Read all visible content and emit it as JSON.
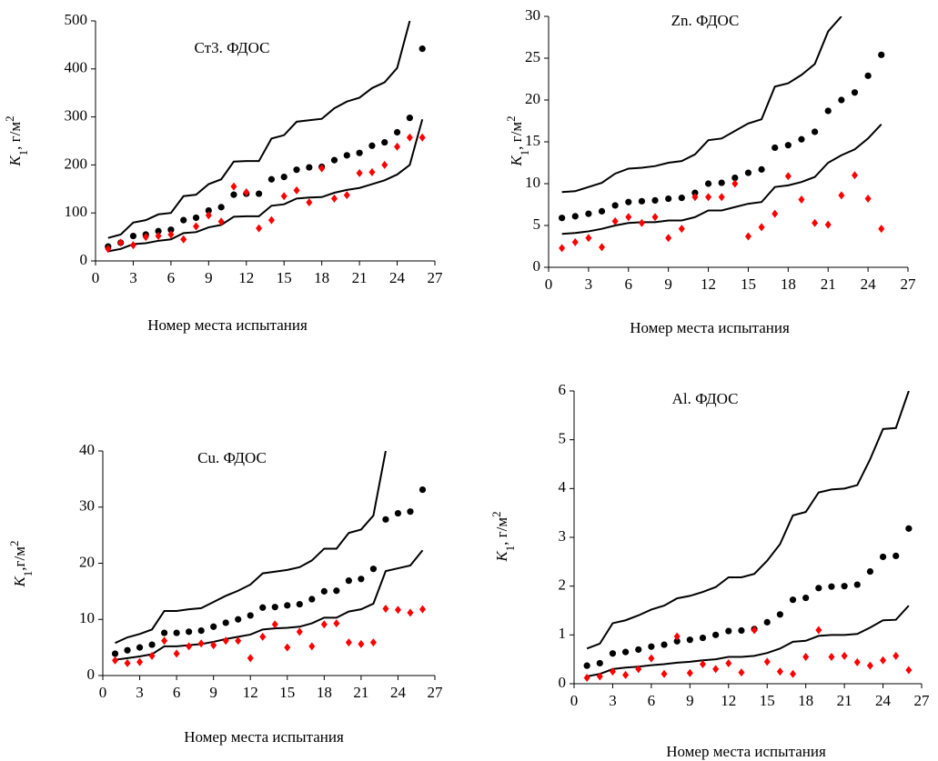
{
  "chart_data": [
    {
      "type": "scatter",
      "title": "Ст3. ФДОС",
      "xlabel": "Номер места испытания",
      "ylabel": {
        "symbol": "K",
        "sub": "1",
        "text": ", г/м",
        "sup": "2"
      },
      "xlim": [
        0,
        27
      ],
      "xticks": [
        0,
        3,
        6,
        9,
        12,
        15,
        18,
        21,
        24,
        27
      ],
      "ylim": [
        0,
        500
      ],
      "yticks": [
        0,
        100,
        200,
        300,
        400,
        500
      ],
      "series": [
        {
          "style": "line",
          "color": "#000000",
          "x": [
            1,
            2,
            3,
            4,
            5,
            6,
            7,
            8,
            9,
            10,
            11,
            12,
            13,
            14,
            15,
            16,
            17,
            18,
            19,
            20,
            21,
            22,
            23,
            24,
            25
          ],
          "values": [
            48,
            55,
            80,
            85,
            97,
            100,
            135,
            138,
            160,
            170,
            207,
            208,
            208,
            255,
            262,
            290,
            293,
            296,
            318,
            332,
            340,
            360,
            372,
            402,
            500
          ]
        },
        {
          "style": "line",
          "color": "#000000",
          "x": [
            1,
            2,
            3,
            4,
            5,
            6,
            7,
            8,
            9,
            10,
            11,
            12,
            13,
            14,
            15,
            16,
            17,
            18,
            19,
            20,
            21,
            22,
            23,
            24,
            25,
            26
          ],
          "values": [
            20,
            25,
            35,
            37,
            42,
            45,
            58,
            60,
            70,
            75,
            92,
            93,
            93,
            115,
            118,
            130,
            132,
            133,
            142,
            148,
            152,
            160,
            168,
            180,
            200,
            295
          ]
        },
        {
          "style": "circle",
          "color": "#000000",
          "x": [
            1,
            2,
            3,
            4,
            5,
            6,
            7,
            8,
            9,
            10,
            11,
            12,
            13,
            14,
            15,
            16,
            17,
            18,
            19,
            20,
            21,
            22,
            23,
            24,
            25,
            26
          ],
          "values": [
            30,
            38,
            52,
            55,
            62,
            65,
            85,
            90,
            105,
            112,
            138,
            140,
            140,
            170,
            175,
            190,
            195,
            196,
            210,
            220,
            225,
            240,
            247,
            268,
            298,
            442
          ]
        },
        {
          "style": "diamond",
          "color": "#ff0000",
          "x": [
            1,
            2,
            3,
            4,
            5,
            6,
            7,
            8,
            9,
            10,
            11,
            12,
            13,
            14,
            15,
            16,
            17,
            18,
            19,
            20,
            21,
            22,
            23,
            24,
            25,
            26
          ],
          "values": [
            25,
            38,
            33,
            50,
            52,
            55,
            45,
            72,
            95,
            82,
            155,
            143,
            68,
            85,
            135,
            147,
            122,
            193,
            130,
            137,
            183,
            185,
            200,
            238,
            257,
            257
          ]
        }
      ]
    },
    {
      "type": "scatter",
      "title": "Zn. ФДОС",
      "xlabel": "Номер места испытания",
      "ylabel": {
        "symbol": "K",
        "sub": "1",
        "text": ", г/м",
        "sup": "2"
      },
      "xlim": [
        0,
        27
      ],
      "xticks": [
        0,
        3,
        6,
        9,
        12,
        15,
        18,
        21,
        24,
        27
      ],
      "ylim": [
        0,
        30
      ],
      "yticks": [
        0,
        5,
        10,
        15,
        20,
        25,
        30
      ],
      "series": [
        {
          "style": "line",
          "color": "#000000",
          "x": [
            1,
            2,
            3,
            4,
            5,
            6,
            7,
            8,
            9,
            10,
            11,
            12,
            13,
            14,
            15,
            16,
            17,
            18,
            19,
            20,
            21,
            22
          ],
          "values": [
            9,
            9.1,
            9.6,
            10.1,
            11.2,
            11.8,
            11.9,
            12.1,
            12.5,
            12.7,
            13.5,
            15.2,
            15.4,
            16.3,
            17.2,
            17.7,
            21.6,
            22,
            23,
            24.3,
            28.2,
            30
          ]
        },
        {
          "style": "line",
          "color": "#000000",
          "x": [
            1,
            2,
            3,
            4,
            5,
            6,
            7,
            8,
            9,
            10,
            11,
            12,
            13,
            14,
            15,
            16,
            17,
            18,
            19,
            20,
            21,
            22,
            23,
            24,
            25
          ],
          "values": [
            4,
            4.1,
            4.3,
            4.6,
            5,
            5.3,
            5.4,
            5.4,
            5.6,
            5.6,
            6,
            6.8,
            6.8,
            7.2,
            7.6,
            7.8,
            9.6,
            9.8,
            10.2,
            10.8,
            12.5,
            13.4,
            14.1,
            15.4,
            17.1
          ]
        },
        {
          "style": "circle",
          "color": "#000000",
          "x": [
            1,
            2,
            3,
            4,
            5,
            6,
            7,
            8,
            9,
            10,
            11,
            12,
            13,
            14,
            15,
            16,
            17,
            18,
            19,
            20,
            21,
            22,
            23,
            24,
            25
          ],
          "values": [
            5.9,
            6.1,
            6.4,
            6.7,
            7.4,
            7.8,
            7.9,
            8,
            8.2,
            8.3,
            8.9,
            10,
            10.1,
            10.7,
            11.3,
            11.7,
            14.3,
            14.6,
            15.3,
            16.2,
            18.7,
            20,
            20.9,
            22.9,
            25.4
          ]
        },
        {
          "style": "diamond",
          "color": "#ff0000",
          "x": [
            1,
            2,
            3,
            4,
            5,
            6,
            7,
            8,
            9,
            10,
            11,
            12,
            13,
            14,
            15,
            16,
            17,
            18,
            19,
            20,
            21,
            22,
            23,
            24,
            25
          ],
          "values": [
            2.3,
            3,
            3.5,
            2.4,
            5.5,
            6,
            5.3,
            6,
            3.5,
            4.6,
            8.4,
            8.4,
            8.4,
            10,
            3.7,
            4.8,
            6.4,
            10.9,
            8.1,
            5.3,
            5.1,
            8.6,
            11,
            8.2,
            4.6
          ]
        }
      ]
    },
    {
      "type": "scatter",
      "title": "Cu. ФДОС",
      "xlabel": "Номер места испытания",
      "ylabel": {
        "symbol": "K",
        "sub": "1",
        "text": ",г/м",
        "sup": "2"
      },
      "xlim": [
        0,
        27
      ],
      "xticks": [
        0,
        3,
        6,
        9,
        12,
        15,
        18,
        21,
        24,
        27
      ],
      "ylim": [
        0,
        40
      ],
      "yticks": [
        0,
        10,
        20,
        30,
        40
      ],
      "series": [
        {
          "style": "line",
          "color": "#000000",
          "x": [
            1,
            2,
            3,
            4,
            5,
            6,
            7,
            8,
            9,
            10,
            11,
            12,
            13,
            14,
            15,
            16,
            17,
            18,
            19,
            20,
            21,
            22,
            23
          ],
          "values": [
            5.8,
            6.8,
            7.4,
            8.2,
            11.5,
            11.5,
            11.8,
            12,
            13.1,
            14.2,
            15.1,
            16.2,
            18.2,
            18.5,
            18.8,
            19.3,
            20.5,
            22.6,
            22.6,
            25.4,
            26,
            28.5,
            40
          ]
        },
        {
          "style": "line",
          "color": "#000000",
          "x": [
            1,
            2,
            3,
            4,
            5,
            6,
            7,
            8,
            9,
            10,
            11,
            12,
            13,
            14,
            15,
            16,
            17,
            18,
            19,
            20,
            21,
            22,
            23,
            24,
            25,
            26
          ],
          "values": [
            2.8,
            3.1,
            3.4,
            3.8,
            5.2,
            5.2,
            5.4,
            5.6,
            6,
            6.5,
            6.9,
            7.3,
            8.2,
            8.4,
            8.5,
            8.7,
            9.3,
            10.3,
            10.3,
            11.4,
            11.8,
            12.8,
            18.6,
            19.1,
            19.6,
            22.3
          ]
        },
        {
          "style": "circle",
          "color": "#000000",
          "x": [
            1,
            2,
            3,
            4,
            5,
            6,
            7,
            8,
            9,
            10,
            11,
            12,
            13,
            14,
            15,
            16,
            17,
            18,
            19,
            20,
            21,
            22,
            23,
            24,
            25,
            26
          ],
          "values": [
            3.9,
            4.5,
            5,
            5.5,
            7.6,
            7.6,
            7.8,
            8,
            8.7,
            9.4,
            10,
            10.7,
            12.1,
            12.2,
            12.5,
            12.7,
            13.6,
            15,
            15.1,
            16.9,
            17.2,
            19,
            27.8,
            28.9,
            29.2,
            33.1
          ]
        },
        {
          "style": "diamond",
          "color": "#ff0000",
          "x": [
            1,
            2,
            3,
            4,
            5,
            6,
            7,
            8,
            9,
            10,
            11,
            12,
            13,
            14,
            15,
            16,
            17,
            18,
            19,
            20,
            21,
            22,
            23,
            24,
            25,
            26
          ],
          "values": [
            2.7,
            2.2,
            2.4,
            3.5,
            6.2,
            3.9,
            5.2,
            5.7,
            5.4,
            6.2,
            6.2,
            3.1,
            6.9,
            9.1,
            5,
            7.8,
            5.2,
            9.1,
            9.3,
            5.9,
            5.6,
            5.9,
            11.9,
            11.7,
            11.2,
            11.8
          ]
        }
      ]
    },
    {
      "type": "scatter",
      "title": "Al. ФДОС",
      "xlabel": "Номер места испытания",
      "ylabel": {
        "symbol": "K",
        "sub": "1",
        "text": ", г/м",
        "sup": "2"
      },
      "xlim": [
        0,
        27
      ],
      "xticks": [
        0,
        3,
        6,
        9,
        12,
        15,
        18,
        21,
        24,
        27
      ],
      "ylim": [
        0,
        6
      ],
      "yticks": [
        0,
        1,
        2,
        3,
        4,
        5,
        6
      ],
      "series": [
        {
          "style": "line",
          "color": "#000000",
          "x": [
            1,
            2,
            3,
            4,
            5,
            6,
            7,
            8,
            9,
            10,
            11,
            12,
            13,
            14,
            15,
            16,
            17,
            18,
            19,
            20,
            21,
            22,
            23,
            24,
            25,
            26
          ],
          "values": [
            0.72,
            0.82,
            1.24,
            1.3,
            1.4,
            1.52,
            1.6,
            1.75,
            1.8,
            1.88,
            1.98,
            2.18,
            2.18,
            2.25,
            2.52,
            2.86,
            3.45,
            3.52,
            3.92,
            3.98,
            4,
            4.07,
            4.6,
            5.22,
            5.24,
            6
          ]
        },
        {
          "style": "line",
          "color": "#000000",
          "x": [
            1,
            2,
            3,
            4,
            5,
            6,
            7,
            8,
            9,
            10,
            11,
            12,
            13,
            14,
            15,
            16,
            17,
            18,
            19,
            20,
            21,
            22,
            23,
            24,
            25,
            26
          ],
          "values": [
            0.15,
            0.2,
            0.3,
            0.33,
            0.35,
            0.38,
            0.4,
            0.43,
            0.45,
            0.48,
            0.5,
            0.55,
            0.55,
            0.57,
            0.63,
            0.72,
            0.86,
            0.88,
            0.98,
            1,
            1,
            1.02,
            1.15,
            1.3,
            1.31,
            1.6
          ]
        },
        {
          "style": "circle",
          "color": "#000000",
          "x": [
            1,
            2,
            3,
            4,
            5,
            6,
            7,
            8,
            9,
            10,
            11,
            12,
            13,
            14,
            15,
            16,
            17,
            18,
            19,
            20,
            21,
            22,
            23,
            24,
            25,
            26
          ],
          "values": [
            0.37,
            0.42,
            0.62,
            0.65,
            0.7,
            0.76,
            0.8,
            0.87,
            0.9,
            0.94,
            1,
            1.08,
            1.09,
            1.12,
            1.26,
            1.42,
            1.72,
            1.76,
            1.96,
            1.99,
            2,
            2.03,
            2.3,
            2.6,
            2.62,
            3.18
          ]
        },
        {
          "style": "diamond",
          "color": "#ff0000",
          "x": [
            1,
            2,
            3,
            4,
            5,
            6,
            7,
            8,
            9,
            10,
            11,
            12,
            13,
            14,
            15,
            16,
            17,
            18,
            19,
            20,
            21,
            22,
            23,
            24,
            25,
            26
          ],
          "values": [
            0.12,
            0.15,
            0.25,
            0.18,
            0.3,
            0.52,
            0.2,
            0.97,
            0.22,
            0.4,
            0.3,
            0.42,
            0.23,
            1.1,
            0.45,
            0.25,
            0.2,
            0.55,
            1.1,
            0.55,
            0.57,
            0.44,
            0.37,
            0.48,
            0.57,
            0.28
          ]
        }
      ]
    }
  ]
}
